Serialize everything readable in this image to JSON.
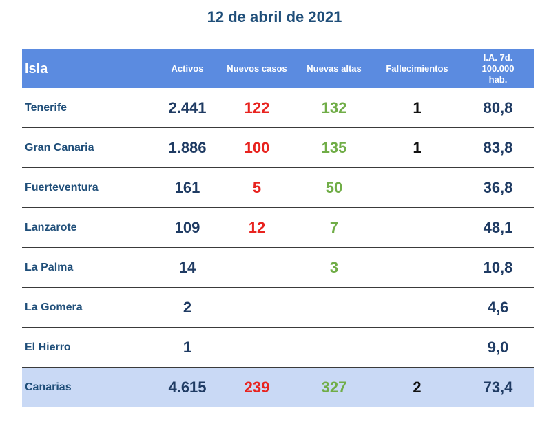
{
  "title": "12 de abril de 2021",
  "headers": {
    "isla": "Isla",
    "activos": "Activos",
    "nuevos_casos": "Nuevos casos",
    "nuevas_altas": "Nuevas altas",
    "fallecimientos": "Fallecimientos",
    "ia_line1": "I.A. 7d.",
    "ia_line2": "100.000",
    "ia_line3": "hab."
  },
  "colors": {
    "header_bg": "#5b8be0",
    "title": "#1f4e79",
    "nuevos_casos": "#e8231f",
    "nuevas_altas": "#70ad47",
    "total_bg": "#c9d9f5"
  },
  "rows": [
    {
      "isla": "Tenerife",
      "activos": "2.441",
      "nuevos_casos": "122",
      "nuevas_altas": "132",
      "fallecimientos": "1",
      "ia": "80,8"
    },
    {
      "isla": "Gran Canaria",
      "activos": "1.886",
      "nuevos_casos": "100",
      "nuevas_altas": "135",
      "fallecimientos": "1",
      "ia": "83,8"
    },
    {
      "isla": "Fuerteventura",
      "activos": "161",
      "nuevos_casos": "5",
      "nuevas_altas": "50",
      "fallecimientos": "",
      "ia": "36,8"
    },
    {
      "isla": "Lanzarote",
      "activos": "109",
      "nuevos_casos": "12",
      "nuevas_altas": "7",
      "fallecimientos": "",
      "ia": "48,1"
    },
    {
      "isla": "La Palma",
      "activos": "14",
      "nuevos_casos": "",
      "nuevas_altas": "3",
      "fallecimientos": "",
      "ia": "10,8"
    },
    {
      "isla": "La Gomera",
      "activos": "2",
      "nuevos_casos": "",
      "nuevas_altas": "",
      "fallecimientos": "",
      "ia": "4,6"
    },
    {
      "isla": "El Hierro",
      "activos": "1",
      "nuevos_casos": "",
      "nuevas_altas": "",
      "fallecimientos": "",
      "ia": "9,0"
    }
  ],
  "total": {
    "isla": "Canarias",
    "activos": "4.615",
    "nuevos_casos": "239",
    "nuevas_altas": "327",
    "fallecimientos": "2",
    "ia": "73,4"
  }
}
